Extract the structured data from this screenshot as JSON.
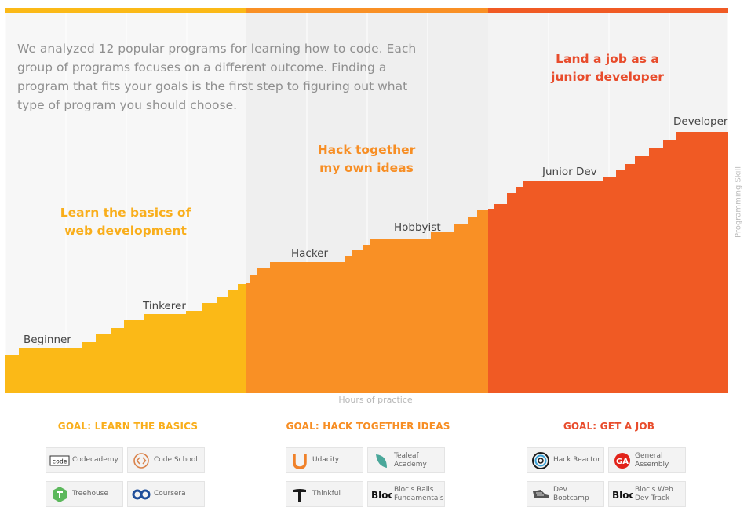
{
  "intro_text": "We analyzed 12 popular programs for learning how to code. Each group of programs focuses on a different outcome. Finding a program that fits your goals is the first step to figuring out what type of program you should choose.",
  "colors": {
    "basics": "#fbb917",
    "hack": "#f99025",
    "job": "#f05a24",
    "basics_text": "#f9ae1b",
    "hack_text": "#f78e24",
    "job_text": "#e84c2c"
  },
  "chart_data": {
    "type": "area",
    "xlabel": "Hours of practice",
    "ylabel": "Programming Skill",
    "grid": true,
    "regions": [
      {
        "goal": "Learn the basics of web development",
        "color": "#fbb917"
      },
      {
        "goal": "Hack together my own ideas",
        "color": "#f99025"
      },
      {
        "goal": "Land a job as a junior developer",
        "color": "#f05a24"
      }
    ],
    "levels": [
      "Beginner",
      "Tinkerer",
      "Hacker",
      "Hobbyist",
      "Junior Dev",
      "Developer"
    ]
  },
  "goals": [
    {
      "heading": "GOAL: LEARN THE BASICS",
      "programs": [
        {
          "name": "Codecademy",
          "icon": "codecademy-icon"
        },
        {
          "name": "Code School",
          "icon": "code-school-icon"
        },
        {
          "name": "Treehouse",
          "icon": "treehouse-icon"
        },
        {
          "name": "Coursera",
          "icon": "coursera-icon"
        }
      ]
    },
    {
      "heading": "GOAL: HACK TOGETHER IDEAS",
      "programs": [
        {
          "name": "Udacity",
          "icon": "udacity-icon"
        },
        {
          "name": "Tealeaf Academy",
          "icon": "tealeaf-icon"
        },
        {
          "name": "Thinkful",
          "icon": "thinkful-icon"
        },
        {
          "name": "Bloc's Rails Fundamentals",
          "icon": "bloc-icon"
        }
      ]
    },
    {
      "heading": "GOAL: GET A JOB",
      "programs": [
        {
          "name": "Hack Reactor",
          "icon": "hack-reactor-icon"
        },
        {
          "name": "General Assembly",
          "icon": "general-assembly-icon"
        },
        {
          "name": "Dev Bootcamp",
          "icon": "dev-bootcamp-icon"
        },
        {
          "name": "Bloc's Web Dev Track",
          "icon": "bloc-icon"
        }
      ]
    }
  ]
}
